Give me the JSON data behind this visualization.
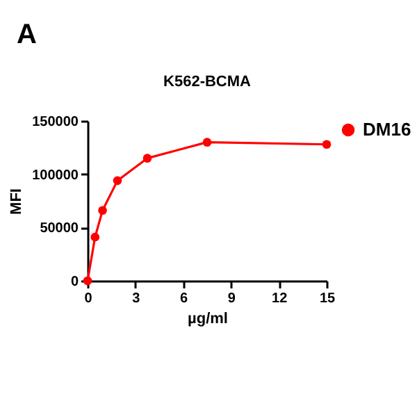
{
  "chart_data": {
    "type": "line",
    "title": "K562-BCMA",
    "xlabel": "µg/ml",
    "ylabel": "MFI",
    "annotations": [
      "A"
    ],
    "x": [
      0,
      0.47,
      0.94,
      1.875,
      3.75,
      7.5,
      15
    ],
    "series": [
      {
        "name": "DM16",
        "color": "#ff0000",
        "values": [
          0,
          41000,
          66000,
          94000,
          115000,
          130000,
          128000
        ]
      }
    ],
    "xlim": [
      0,
      15
    ],
    "xticks": [
      0,
      3,
      6,
      9,
      12,
      15
    ],
    "ylim": [
      0,
      150000
    ],
    "yticks": [
      0,
      50000,
      100000,
      150000
    ],
    "grid": false,
    "legend": "top right",
    "marker": "circle",
    "line_style": "solid"
  }
}
